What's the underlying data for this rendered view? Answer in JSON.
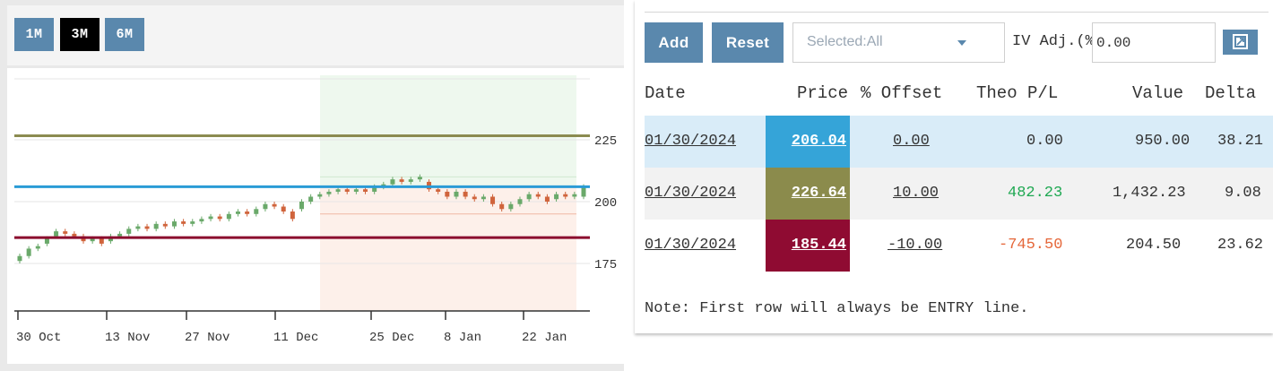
{
  "range_buttons": [
    {
      "label": "1M",
      "active": false
    },
    {
      "label": "3M",
      "active": true
    },
    {
      "label": "6M",
      "active": false
    }
  ],
  "chart_data": {
    "type": "candlestick",
    "x_tick_labels": [
      "30 Oct",
      "13 Nov",
      "27 Nov",
      "11 Dec",
      "25 Dec",
      "8 Jan",
      "22 Jan"
    ],
    "y_tick_labels": [
      "225",
      "200",
      "175"
    ],
    "ylim": [
      160,
      240
    ],
    "horizontal_lines": [
      {
        "value": 226.64,
        "color": "#8b8b50"
      },
      {
        "value": 206.04,
        "color": "#2a9bd6"
      },
      {
        "value": 185.44,
        "color": "#8b0a2e"
      }
    ],
    "candles": [
      {
        "o": 176,
        "c": 178,
        "h": 179,
        "l": 175
      },
      {
        "o": 178,
        "c": 181,
        "h": 182,
        "l": 177
      },
      {
        "o": 181,
        "c": 182,
        "h": 183,
        "l": 180
      },
      {
        "o": 183,
        "c": 185,
        "h": 186,
        "l": 182
      },
      {
        "o": 186,
        "c": 188,
        "h": 189,
        "l": 185
      },
      {
        "o": 188,
        "c": 187,
        "h": 189,
        "l": 186
      },
      {
        "o": 187,
        "c": 186,
        "h": 188,
        "l": 185
      },
      {
        "o": 186,
        "c": 184,
        "h": 187,
        "l": 183
      },
      {
        "o": 184,
        "c": 185,
        "h": 186,
        "l": 183
      },
      {
        "o": 185,
        "c": 183,
        "h": 186,
        "l": 182
      },
      {
        "o": 184,
        "c": 186,
        "h": 187,
        "l": 183
      },
      {
        "o": 186,
        "c": 187,
        "h": 188,
        "l": 185
      },
      {
        "o": 187,
        "c": 189,
        "h": 190,
        "l": 186
      },
      {
        "o": 189,
        "c": 190,
        "h": 191,
        "l": 188
      },
      {
        "o": 190,
        "c": 189,
        "h": 191,
        "l": 188
      },
      {
        "o": 189,
        "c": 191,
        "h": 192,
        "l": 188
      },
      {
        "o": 191,
        "c": 190,
        "h": 192,
        "l": 189
      },
      {
        "o": 190,
        "c": 192,
        "h": 193,
        "l": 189
      },
      {
        "o": 192,
        "c": 191,
        "h": 193,
        "l": 190
      },
      {
        "o": 191,
        "c": 192,
        "h": 193,
        "l": 190
      },
      {
        "o": 192,
        "c": 193,
        "h": 194,
        "l": 191
      },
      {
        "o": 193,
        "c": 194,
        "h": 195,
        "l": 192
      },
      {
        "o": 194,
        "c": 193,
        "h": 195,
        "l": 192
      },
      {
        "o": 193,
        "c": 195,
        "h": 196,
        "l": 192
      },
      {
        "o": 195,
        "c": 196,
        "h": 197,
        "l": 194
      },
      {
        "o": 196,
        "c": 195,
        "h": 197,
        "l": 194
      },
      {
        "o": 195,
        "c": 197,
        "h": 198,
        "l": 194
      },
      {
        "o": 197,
        "c": 199,
        "h": 200,
        "l": 196
      },
      {
        "o": 199,
        "c": 198,
        "h": 200,
        "l": 197
      },
      {
        "o": 198,
        "c": 196,
        "h": 199,
        "l": 195
      },
      {
        "o": 196,
        "c": 193,
        "h": 197,
        "l": 192
      },
      {
        "o": 197,
        "c": 200,
        "h": 201,
        "l": 196
      },
      {
        "o": 200,
        "c": 202,
        "h": 203,
        "l": 199
      },
      {
        "o": 202,
        "c": 203,
        "h": 204,
        "l": 201
      },
      {
        "o": 203,
        "c": 204,
        "h": 205,
        "l": 202
      },
      {
        "o": 204,
        "c": 205,
        "h": 206,
        "l": 203
      },
      {
        "o": 205,
        "c": 204,
        "h": 206,
        "l": 203
      },
      {
        "o": 204,
        "c": 205,
        "h": 206,
        "l": 203
      },
      {
        "o": 205,
        "c": 204,
        "h": 206,
        "l": 203
      },
      {
        "o": 204,
        "c": 206,
        "h": 207,
        "l": 203
      },
      {
        "o": 206,
        "c": 207,
        "h": 208,
        "l": 205
      },
      {
        "o": 207,
        "c": 209,
        "h": 210,
        "l": 206
      },
      {
        "o": 209,
        "c": 208,
        "h": 210,
        "l": 207
      },
      {
        "o": 208,
        "c": 209,
        "h": 210,
        "l": 207
      },
      {
        "o": 209,
        "c": 210,
        "h": 211,
        "l": 208
      },
      {
        "o": 208,
        "c": 205,
        "h": 209,
        "l": 204
      },
      {
        "o": 205,
        "c": 204,
        "h": 206,
        "l": 203
      },
      {
        "o": 204,
        "c": 202,
        "h": 205,
        "l": 201
      },
      {
        "o": 202,
        "c": 204,
        "h": 205,
        "l": 201
      },
      {
        "o": 204,
        "c": 202,
        "h": 205,
        "l": 201
      },
      {
        "o": 202,
        "c": 201,
        "h": 203,
        "l": 200
      },
      {
        "o": 201,
        "c": 202,
        "h": 203,
        "l": 200
      },
      {
        "o": 202,
        "c": 199,
        "h": 203,
        "l": 198
      },
      {
        "o": 199,
        "c": 197,
        "h": 200,
        "l": 196
      },
      {
        "o": 197,
        "c": 199,
        "h": 200,
        "l": 196
      },
      {
        "o": 199,
        "c": 201,
        "h": 202,
        "l": 198
      },
      {
        "o": 201,
        "c": 203,
        "h": 204,
        "l": 200
      },
      {
        "o": 203,
        "c": 202,
        "h": 204,
        "l": 201
      },
      {
        "o": 202,
        "c": 200,
        "h": 203,
        "l": 199
      },
      {
        "o": 201,
        "c": 203,
        "h": 204,
        "l": 200
      },
      {
        "o": 203,
        "c": 202,
        "h": 204,
        "l": 201
      },
      {
        "o": 202,
        "c": 203,
        "h": 204,
        "l": 201
      },
      {
        "o": 202,
        "c": 206,
        "h": 207,
        "l": 201
      }
    ],
    "up_color": "#6aa96a",
    "down_color": "#d0643c"
  },
  "toolbar": {
    "add_label": "Add",
    "reset_label": "Reset",
    "select_value": "Selected:All",
    "iv_label": "IV Adj.(%)",
    "iv_value": "0.00"
  },
  "table": {
    "headers": {
      "date": "Date",
      "price": "Price",
      "offset": "% Offset",
      "theo": "Theo P/L",
      "value": "Value",
      "delta": "Delta"
    },
    "rows": [
      {
        "date": "01/30/2024",
        "price": "206.04",
        "offset": "0.00",
        "theo": "0.00",
        "value": "950.00",
        "delta": "38.21",
        "price_color": "#35a4d8",
        "row_bg": "#d9ecf8",
        "theo_color": "#333333"
      },
      {
        "date": "01/30/2024",
        "price": "226.64",
        "offset": "10.00",
        "theo": "482.23",
        "value": "1,432.23",
        "delta": "9.08",
        "price_color": "#8b8b4c",
        "row_bg": "#f2f2f2",
        "theo_color": "#1fa852"
      },
      {
        "date": "01/30/2024",
        "price": "185.44",
        "offset": "-10.00",
        "theo": "-745.50",
        "value": "204.50",
        "delta": "23.62",
        "price_color": "#8f0b32",
        "row_bg": "#ffffff",
        "theo_color": "#e5673a"
      }
    ]
  },
  "note": "Note: First row will always be ENTRY line."
}
